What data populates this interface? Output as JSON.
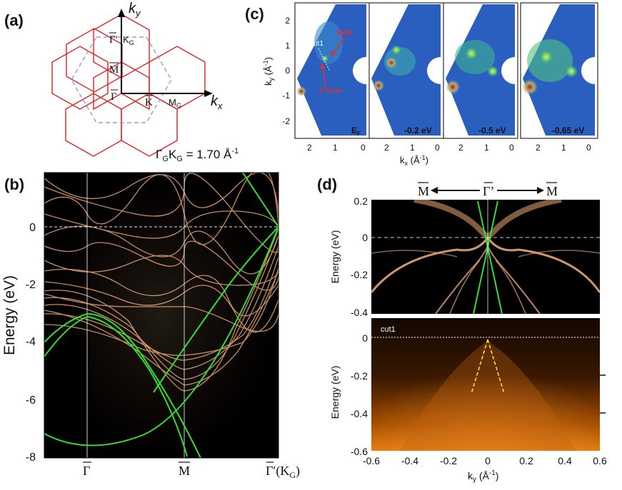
{
  "panels": {
    "a": {
      "label": "(a)",
      "axes": {
        "kx": "k",
        "kx_sub": "x",
        "ky": "k",
        "ky_sub": "y"
      },
      "points": {
        "gamma_prime": "Γ′",
        "kg": "K",
        "kg_sub": "G",
        "m_bar": "M",
        "gamma_bar": "Γ",
        "k_bar": "K",
        "mg": "M",
        "mg_sub": "G"
      },
      "formula": {
        "prefix": "Γ",
        "s1": "G",
        "mid": "K",
        "s2": "G",
        "rest": " = 1.70 Å",
        "exp": "-1"
      }
    },
    "b": {
      "label": "(b)",
      "ylabel": "Energy (eV)",
      "yticks": [
        "0",
        "-2",
        "-4",
        "-6",
        "-8"
      ],
      "xticks": [
        "Γ",
        "M",
        "Γ′(K",
        "G",
        ")"
      ]
    },
    "c": {
      "label": "(c)",
      "ylabel": "k",
      "ylabel_sub": "y",
      "ylabel_unit": " (Å",
      "ylabel_exp": "-1",
      "ylabel_end": ")",
      "xlabel": "k",
      "xlabel_sub": "x",
      "xlabel_unit": " (Å",
      "xlabel_exp": "-1",
      "xlabel_end": ")",
      "yticks": [
        "2",
        "1",
        "0",
        "-1",
        "-2"
      ],
      "xticks": [
        "2",
        "1",
        "0"
      ],
      "maps": [
        {
          "energy": "E",
          "energy_sub": "F"
        },
        {
          "energy": "-0.2 eV"
        },
        {
          "energy": "-0.5 eV"
        },
        {
          "energy": "-0.65 eV"
        }
      ],
      "annotations": {
        "cut": "cut1",
        "bulk": "Bulk",
        "dirac": "TI Dirac"
      }
    },
    "d": {
      "label": "(d)",
      "direction": {
        "left": "M",
        "center": "Γ’",
        "right": "M"
      },
      "top": {
        "ylabel": "Energy (eV)",
        "yticks": [
          "0.2",
          "0",
          "-0.2",
          "-0.4"
        ]
      },
      "bottom": {
        "ylabel": "Energy (eV)",
        "yticks": [
          "0",
          "-0.2",
          "-0.4",
          "-0.6"
        ],
        "cut_label": "cut1",
        "xlabel": "k",
        "xlabel_sub": "y",
        "xlabel_unit": " (Å",
        "xlabel_exp": "-1",
        "xlabel_end": ")",
        "xticks": [
          "-0.6",
          "-0.4",
          "-0.2",
          "0",
          "0.2",
          "0.4",
          "0.6"
        ]
      }
    }
  },
  "colors": {
    "band": "#f0b07a",
    "dft": "#33dd33",
    "bz": "#dd2222",
    "bz_dashed": "#9a9ad0",
    "arpes": "#ff8c1a"
  }
}
